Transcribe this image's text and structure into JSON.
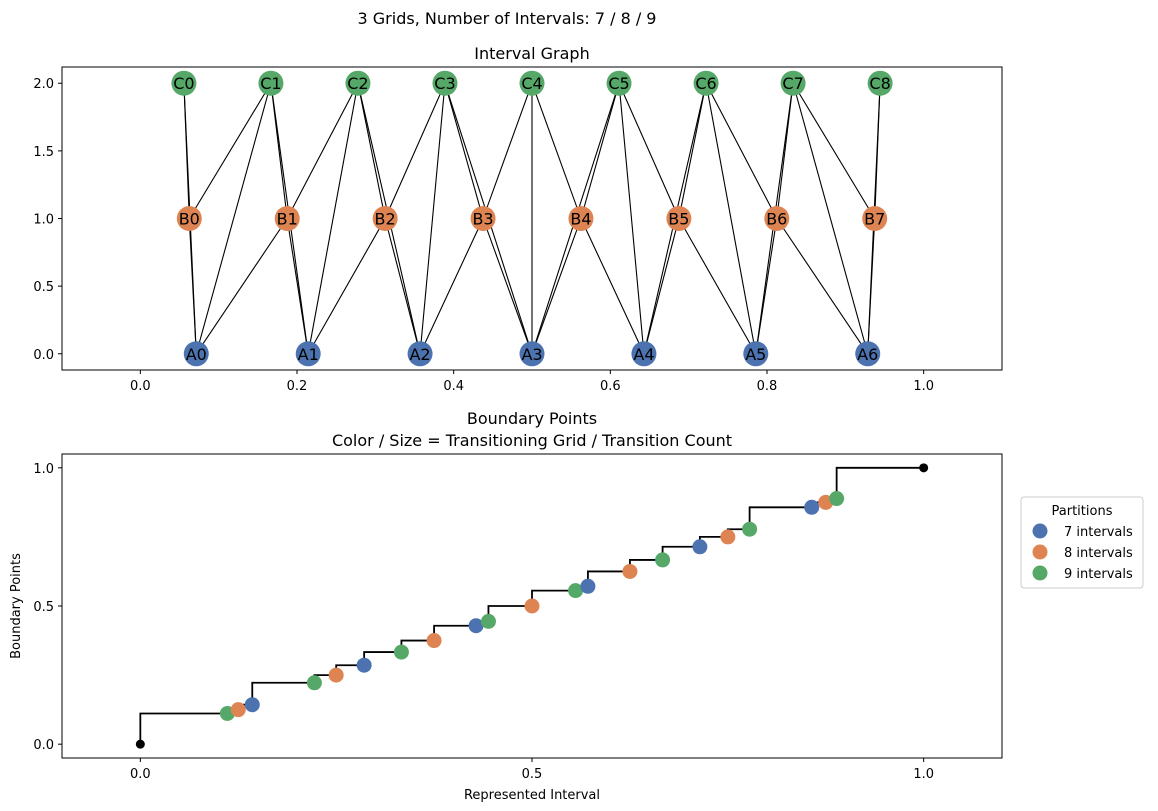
{
  "suptitle": "3 Grids, Number of Intervals: 7 / 8 / 9",
  "colors": {
    "grid_a": "#4c72b0",
    "grid_b": "#dd8452",
    "grid_c": "#55a868",
    "axis": "#000000",
    "step": "#000000"
  },
  "chart_data": [
    {
      "type": "scatter",
      "subtype": "graph",
      "title": "Interval Graph",
      "xlim": [
        -0.1,
        1.1
      ],
      "ylim": [
        -0.12,
        2.12
      ],
      "xticks": [
        0.0,
        0.2,
        0.4,
        0.6,
        0.8,
        1.0
      ],
      "xtick_labels": [
        "0.0",
        "0.2",
        "0.4",
        "0.6",
        "0.8",
        "1.0"
      ],
      "yticks": [
        0.0,
        0.5,
        1.0,
        1.5,
        2.0
      ],
      "ytick_labels": [
        "0.0",
        "0.5",
        "1.0",
        "1.5",
        "2.0"
      ],
      "nodes": [
        {
          "id": "A0",
          "x": 0.0714,
          "y": 0,
          "group": "grid_a"
        },
        {
          "id": "A1",
          "x": 0.2143,
          "y": 0,
          "group": "grid_a"
        },
        {
          "id": "A2",
          "x": 0.3571,
          "y": 0,
          "group": "grid_a"
        },
        {
          "id": "A3",
          "x": 0.5,
          "y": 0,
          "group": "grid_a"
        },
        {
          "id": "A4",
          "x": 0.6429,
          "y": 0,
          "group": "grid_a"
        },
        {
          "id": "A5",
          "x": 0.7857,
          "y": 0,
          "group": "grid_a"
        },
        {
          "id": "A6",
          "x": 0.9286,
          "y": 0,
          "group": "grid_a"
        },
        {
          "id": "B0",
          "x": 0.0625,
          "y": 1,
          "group": "grid_b"
        },
        {
          "id": "B1",
          "x": 0.1875,
          "y": 1,
          "group": "grid_b"
        },
        {
          "id": "B2",
          "x": 0.3125,
          "y": 1,
          "group": "grid_b"
        },
        {
          "id": "B3",
          "x": 0.4375,
          "y": 1,
          "group": "grid_b"
        },
        {
          "id": "B4",
          "x": 0.5625,
          "y": 1,
          "group": "grid_b"
        },
        {
          "id": "B5",
          "x": 0.6875,
          "y": 1,
          "group": "grid_b"
        },
        {
          "id": "B6",
          "x": 0.8125,
          "y": 1,
          "group": "grid_b"
        },
        {
          "id": "B7",
          "x": 0.9375,
          "y": 1,
          "group": "grid_b"
        },
        {
          "id": "C0",
          "x": 0.0556,
          "y": 2,
          "group": "grid_c"
        },
        {
          "id": "C1",
          "x": 0.1667,
          "y": 2,
          "group": "grid_c"
        },
        {
          "id": "C2",
          "x": 0.2778,
          "y": 2,
          "group": "grid_c"
        },
        {
          "id": "C3",
          "x": 0.3889,
          "y": 2,
          "group": "grid_c"
        },
        {
          "id": "C4",
          "x": 0.5,
          "y": 2,
          "group": "grid_c"
        },
        {
          "id": "C5",
          "x": 0.6111,
          "y": 2,
          "group": "grid_c"
        },
        {
          "id": "C6",
          "x": 0.7222,
          "y": 2,
          "group": "grid_c"
        },
        {
          "id": "C7",
          "x": 0.8333,
          "y": 2,
          "group": "grid_c"
        },
        {
          "id": "C8",
          "x": 0.9444,
          "y": 2,
          "group": "grid_c"
        }
      ],
      "edges": [
        [
          "C0",
          "B0"
        ],
        [
          "C0",
          "A0"
        ],
        [
          "C1",
          "B0"
        ],
        [
          "C1",
          "A0"
        ],
        [
          "C1",
          "B1"
        ],
        [
          "C1",
          "A1"
        ],
        [
          "C2",
          "B1"
        ],
        [
          "C2",
          "A1"
        ],
        [
          "C2",
          "B2"
        ],
        [
          "C2",
          "A2"
        ],
        [
          "C3",
          "B2"
        ],
        [
          "C3",
          "A2"
        ],
        [
          "C3",
          "B3"
        ],
        [
          "C3",
          "A3"
        ],
        [
          "C4",
          "B3"
        ],
        [
          "C4",
          "A3"
        ],
        [
          "C4",
          "B4"
        ],
        [
          "C5",
          "B4"
        ],
        [
          "C5",
          "A3"
        ],
        [
          "C5",
          "A4"
        ],
        [
          "C5",
          "B5"
        ],
        [
          "C6",
          "B5"
        ],
        [
          "C6",
          "A4"
        ],
        [
          "C6",
          "B6"
        ],
        [
          "C6",
          "A5"
        ],
        [
          "C7",
          "B6"
        ],
        [
          "C7",
          "A5"
        ],
        [
          "C7",
          "B7"
        ],
        [
          "C7",
          "A6"
        ],
        [
          "C8",
          "B7"
        ],
        [
          "C8",
          "A6"
        ],
        [
          "B0",
          "A0"
        ],
        [
          "B1",
          "A0"
        ],
        [
          "B1",
          "A1"
        ],
        [
          "B2",
          "A1"
        ],
        [
          "B2",
          "A2"
        ],
        [
          "B3",
          "A2"
        ],
        [
          "B3",
          "A3"
        ],
        [
          "B4",
          "A3"
        ],
        [
          "B4",
          "A4"
        ],
        [
          "B5",
          "A4"
        ],
        [
          "B5",
          "A5"
        ],
        [
          "B6",
          "A5"
        ],
        [
          "B6",
          "A6"
        ],
        [
          "B7",
          "A6"
        ]
      ]
    },
    {
      "type": "scatter",
      "subtype": "step",
      "title": "Boundary Points",
      "subtitle": "Color / Size = Transitioning Grid / Transition Count",
      "xlabel": "Represented Interval",
      "ylabel": "Boundary Points",
      "xlim": [
        -0.1,
        1.1
      ],
      "ylim": [
        -0.05,
        1.05
      ],
      "xticks": [
        0.0,
        0.5,
        1.0
      ],
      "xtick_labels": [
        "0.0",
        "0.5",
        "1.0"
      ],
      "yticks": [
        0.0,
        0.5,
        1.0
      ],
      "ytick_labels": [
        "0.0",
        "0.5",
        "1.0"
      ],
      "grid": false,
      "legend": {
        "title": "Partitions",
        "placement": "right",
        "entries": [
          {
            "label": "7 intervals",
            "group": "grid_a"
          },
          {
            "label": "8 intervals",
            "group": "grid_b"
          },
          {
            "label": "9 intervals",
            "group": "grid_c"
          }
        ]
      },
      "endpoints": [
        [
          0,
          0
        ],
        [
          1,
          1
        ]
      ],
      "points": [
        {
          "x": 0.1111,
          "y": 0.1111,
          "group": "grid_c"
        },
        {
          "x": 0.125,
          "y": 0.125,
          "group": "grid_b"
        },
        {
          "x": 0.1429,
          "y": 0.1429,
          "group": "grid_a"
        },
        {
          "x": 0.2222,
          "y": 0.2222,
          "group": "grid_c"
        },
        {
          "x": 0.25,
          "y": 0.25,
          "group": "grid_b"
        },
        {
          "x": 0.2857,
          "y": 0.2857,
          "group": "grid_a"
        },
        {
          "x": 0.3333,
          "y": 0.3333,
          "group": "grid_c"
        },
        {
          "x": 0.375,
          "y": 0.375,
          "group": "grid_b"
        },
        {
          "x": 0.4286,
          "y": 0.4286,
          "group": "grid_a"
        },
        {
          "x": 0.4444,
          "y": 0.4444,
          "group": "grid_c"
        },
        {
          "x": 0.5,
          "y": 0.5,
          "group": "grid_b"
        },
        {
          "x": 0.5556,
          "y": 0.5556,
          "group": "grid_c"
        },
        {
          "x": 0.5714,
          "y": 0.5714,
          "group": "grid_a"
        },
        {
          "x": 0.625,
          "y": 0.625,
          "group": "grid_b"
        },
        {
          "x": 0.6667,
          "y": 0.6667,
          "group": "grid_c"
        },
        {
          "x": 0.7143,
          "y": 0.7143,
          "group": "grid_a"
        },
        {
          "x": 0.75,
          "y": 0.75,
          "group": "grid_b"
        },
        {
          "x": 0.7778,
          "y": 0.7778,
          "group": "grid_c"
        },
        {
          "x": 0.8571,
          "y": 0.8571,
          "group": "grid_a"
        },
        {
          "x": 0.875,
          "y": 0.875,
          "group": "grid_b"
        },
        {
          "x": 0.8889,
          "y": 0.8889,
          "group": "grid_c"
        }
      ]
    }
  ]
}
